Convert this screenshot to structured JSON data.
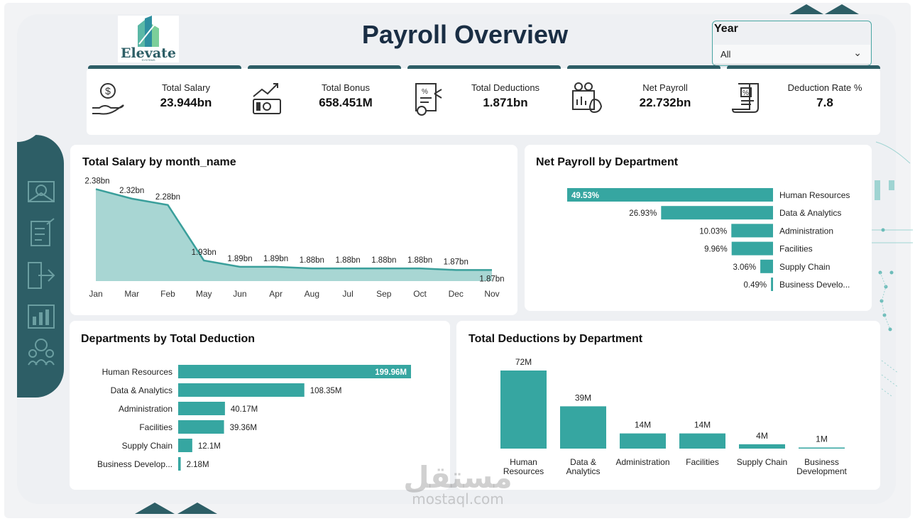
{
  "header": {
    "title": "Payroll Overview",
    "logo_name": "Elevate",
    "logo_sub": "SYSTEMS"
  },
  "filter": {
    "label": "Year",
    "selected": "All"
  },
  "kpis": [
    {
      "label": "Total Salary",
      "value": "23.944bn",
      "icon": "salary-hand-icon"
    },
    {
      "label": "Total Bonus",
      "value": "658.451M",
      "icon": "bonus-cash-icon"
    },
    {
      "label": "Total Deductions",
      "value": "1.871bn",
      "icon": "deductions-doc-icon"
    },
    {
      "label": "Net Payroll",
      "value": "22.732bn",
      "icon": "net-payroll-icon"
    },
    {
      "label": "Deduction Rate %",
      "value": "7.8",
      "icon": "rate-scroll-icon"
    }
  ],
  "colors": {
    "accent": "#2d5e66",
    "teal": "#36a6a1",
    "teal_fill": "#a8d6d3",
    "line": "#3a9f9b"
  },
  "chart_data": [
    {
      "type": "area",
      "title": "Total Salary by month_name",
      "categories": [
        "Jan",
        "Mar",
        "Feb",
        "May",
        "Jun",
        "Apr",
        "Aug",
        "Jul",
        "Sep",
        "Oct",
        "Dec",
        "Nov"
      ],
      "values": [
        2.38,
        2.32,
        2.28,
        1.93,
        1.89,
        1.89,
        1.88,
        1.88,
        1.88,
        1.88,
        1.87,
        1.87
      ],
      "labels": [
        "2.38bn",
        "2.32bn",
        "2.28bn",
        "1.93bn",
        "1.89bn",
        "1.89bn",
        "1.88bn",
        "1.88bn",
        "1.88bn",
        "1.88bn",
        "1.87bn",
        "1.87bn"
      ],
      "ylim": [
        1.8,
        2.4
      ]
    },
    {
      "type": "bar",
      "orientation": "horizontal",
      "title": "Net Payroll by Department",
      "categories": [
        "Human Resources",
        "Data & Analytics",
        "Administration",
        "Facilities",
        "Supply Chain",
        "Business Develo..."
      ],
      "values": [
        49.53,
        26.93,
        10.03,
        9.96,
        3.06,
        0.49
      ],
      "labels": [
        "49.53%",
        "26.93%",
        "10.03%",
        "9.96%",
        "3.06%",
        "0.49%"
      ]
    },
    {
      "type": "bar",
      "orientation": "horizontal",
      "title": "Departments by Total Deduction",
      "categories": [
        "Human Resources",
        "Data & Analytics",
        "Administration",
        "Facilities",
        "Supply Chain",
        "Business Develop..."
      ],
      "values": [
        199.96,
        108.35,
        40.17,
        39.36,
        12.1,
        2.18
      ],
      "labels": [
        "199.96M",
        "108.35M",
        "40.17M",
        "39.36M",
        "12.1M",
        "2.18M"
      ]
    },
    {
      "type": "bar",
      "orientation": "vertical",
      "title": "Total Deductions by Department",
      "categories": [
        [
          "Human",
          "Resources"
        ],
        [
          "Data &",
          "Analytics"
        ],
        [
          "Administration"
        ],
        [
          "Facilities"
        ],
        [
          "Supply Chain"
        ],
        [
          "Business",
          "Development"
        ]
      ],
      "values": [
        72,
        39,
        14,
        14,
        4,
        1
      ],
      "labels": [
        "72M",
        "39M",
        "14M",
        "14M",
        "4M",
        "1M"
      ]
    }
  ],
  "watermark": {
    "arabic": "مستقل",
    "latin": "mostaql.com"
  }
}
